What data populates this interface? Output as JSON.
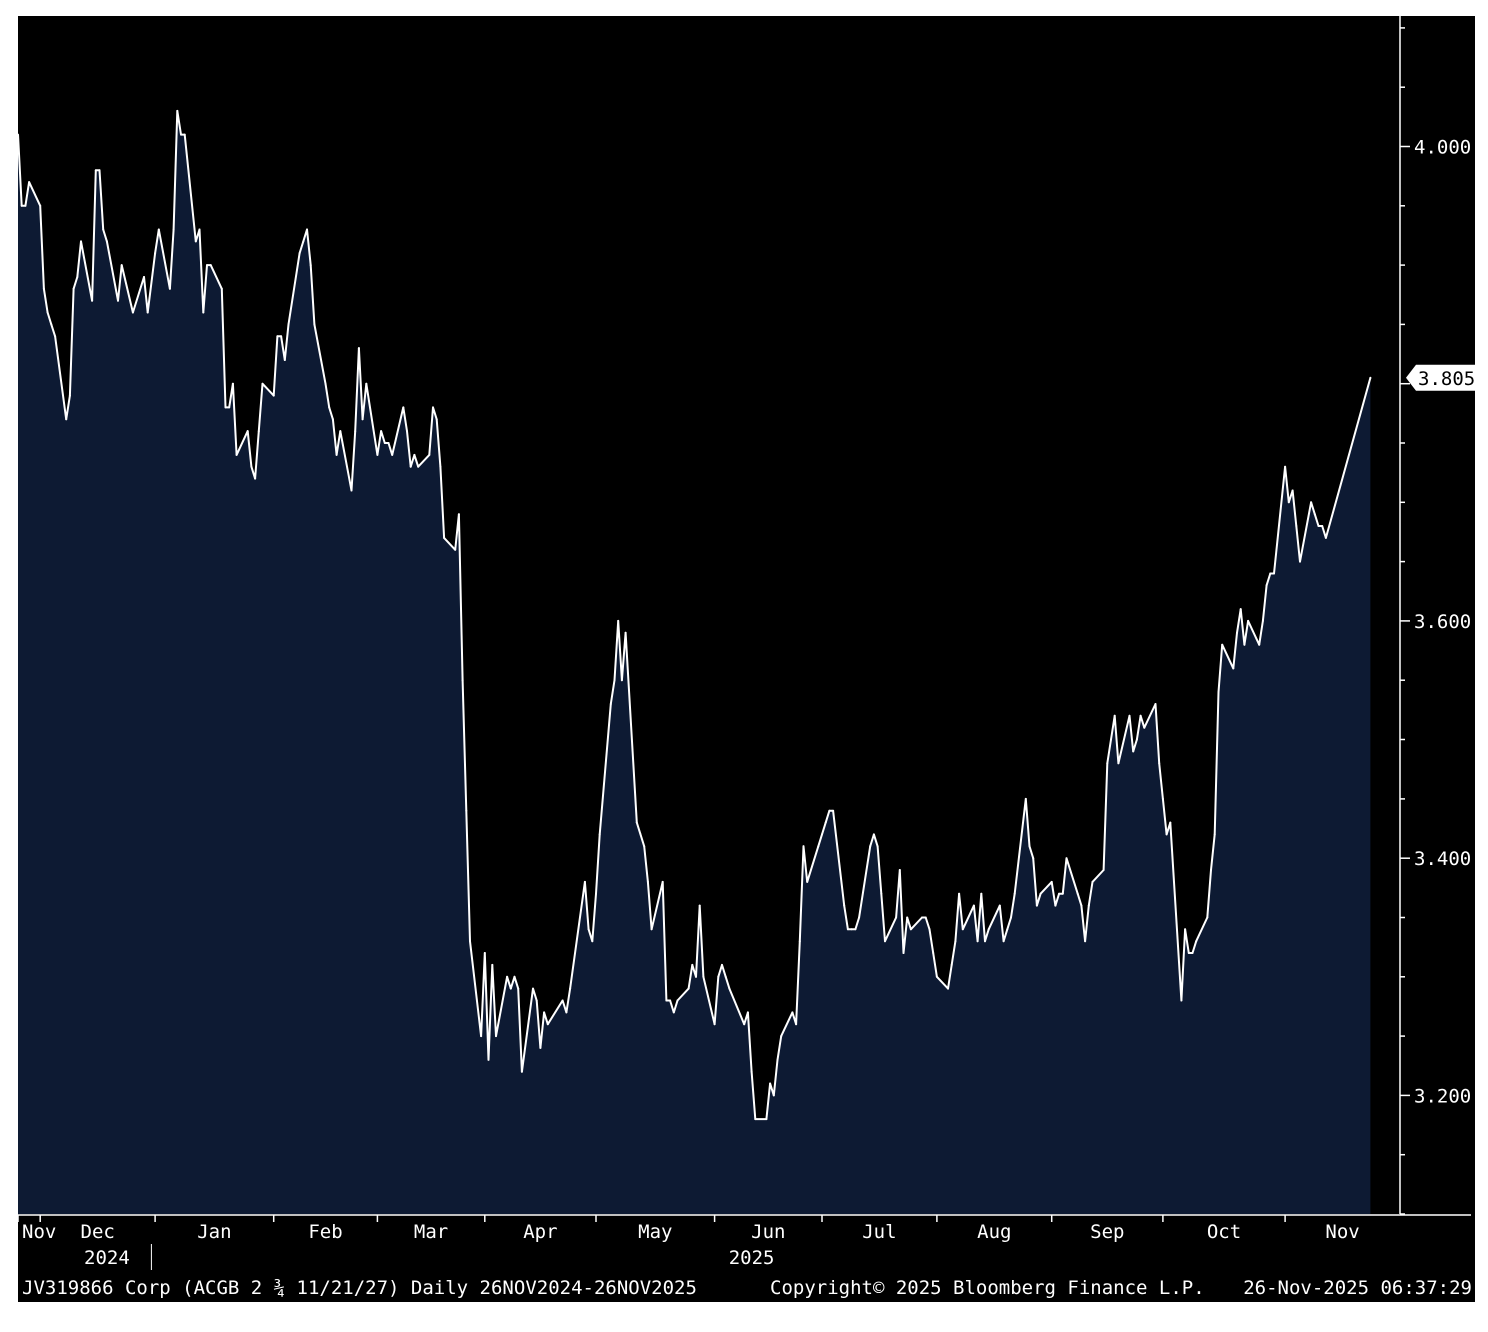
{
  "chart_data": {
    "type": "area",
    "security": "JV319866 Corp (ACGB 2 ¾ 11/21/27) Daily 26NOV2024-26NOV2025",
    "ylim": [
      3.1,
      4.11
    ],
    "grid": false,
    "colors": {
      "line": "#ffffff",
      "fill": "#0d1a33",
      "background": "#000000"
    },
    "y_ticks": [
      "3.200",
      "3.400",
      "3.600",
      "4.000"
    ],
    "y_tick_values": [
      3.2,
      3.4,
      3.6,
      4.0
    ],
    "last_value_label": "3.805",
    "last_value": 3.805,
    "x_ticks": [
      {
        "label": "Nov",
        "date": "2024-11-26"
      },
      {
        "label": "Dec",
        "date": "2024-12-02"
      },
      {
        "label": "Jan",
        "date": "2025-01-02"
      },
      {
        "label": "Feb",
        "date": "2025-02-03"
      },
      {
        "label": "Mar",
        "date": "2025-03-03"
      },
      {
        "label": "Apr",
        "date": "2025-04-01"
      },
      {
        "label": "May",
        "date": "2025-05-01"
      },
      {
        "label": "Jun",
        "date": "2025-06-02"
      },
      {
        "label": "Jul",
        "date": "2025-07-01"
      },
      {
        "label": "Aug",
        "date": "2025-08-01"
      },
      {
        "label": "Sep",
        "date": "2025-09-01"
      },
      {
        "label": "Oct",
        "date": "2025-10-01"
      },
      {
        "label": "Nov",
        "date": "2025-11-03"
      }
    ],
    "year_labels": [
      {
        "label": "2024",
        "date": "2024-12-20"
      },
      {
        "label": "2025",
        "date": "2025-06-12"
      }
    ],
    "x_start": "2024-11-26",
    "x_end": "2025-12-04",
    "points": [
      [
        "2024-11-26",
        4.01
      ],
      [
        "2024-11-27",
        3.95
      ],
      [
        "2024-11-28",
        3.95
      ],
      [
        "2024-11-29",
        3.97
      ],
      [
        "2024-12-02",
        3.95
      ],
      [
        "2024-12-03",
        3.88
      ],
      [
        "2024-12-04",
        3.86
      ],
      [
        "2024-12-05",
        3.85
      ],
      [
        "2024-12-06",
        3.84
      ],
      [
        "2024-12-09",
        3.77
      ],
      [
        "2024-12-10",
        3.79
      ],
      [
        "2024-12-11",
        3.88
      ],
      [
        "2024-12-12",
        3.89
      ],
      [
        "2024-12-13",
        3.92
      ],
      [
        "2024-12-16",
        3.87
      ],
      [
        "2024-12-17",
        3.98
      ],
      [
        "2024-12-18",
        3.98
      ],
      [
        "2024-12-19",
        3.93
      ],
      [
        "2024-12-20",
        3.92
      ],
      [
        "2024-12-23",
        3.87
      ],
      [
        "2024-12-24",
        3.9
      ],
      [
        "2024-12-27",
        3.86
      ],
      [
        "2024-12-30",
        3.89
      ],
      [
        "2024-12-31",
        3.86
      ],
      [
        "2025-01-02",
        3.91
      ],
      [
        "2025-01-03",
        3.93
      ],
      [
        "2025-01-06",
        3.88
      ],
      [
        "2025-01-07",
        3.93
      ],
      [
        "2025-01-08",
        4.03
      ],
      [
        "2025-01-09",
        4.01
      ],
      [
        "2025-01-10",
        4.01
      ],
      [
        "2025-01-13",
        3.92
      ],
      [
        "2025-01-14",
        3.93
      ],
      [
        "2025-01-15",
        3.86
      ],
      [
        "2025-01-16",
        3.9
      ],
      [
        "2025-01-17",
        3.9
      ],
      [
        "2025-01-20",
        3.88
      ],
      [
        "2025-01-21",
        3.78
      ],
      [
        "2025-01-22",
        3.78
      ],
      [
        "2025-01-23",
        3.8
      ],
      [
        "2025-01-24",
        3.74
      ],
      [
        "2025-01-27",
        3.76
      ],
      [
        "2025-01-28",
        3.73
      ],
      [
        "2025-01-29",
        3.72
      ],
      [
        "2025-01-30",
        3.76
      ],
      [
        "2025-01-31",
        3.8
      ],
      [
        "2025-02-03",
        3.79
      ],
      [
        "2025-02-04",
        3.84
      ],
      [
        "2025-02-05",
        3.84
      ],
      [
        "2025-02-06",
        3.82
      ],
      [
        "2025-02-07",
        3.85
      ],
      [
        "2025-02-10",
        3.91
      ],
      [
        "2025-02-11",
        3.92
      ],
      [
        "2025-02-12",
        3.93
      ],
      [
        "2025-02-13",
        3.9
      ],
      [
        "2025-02-14",
        3.85
      ],
      [
        "2025-02-17",
        3.8
      ],
      [
        "2025-02-18",
        3.78
      ],
      [
        "2025-02-19",
        3.77
      ],
      [
        "2025-02-20",
        3.74
      ],
      [
        "2025-02-21",
        3.76
      ],
      [
        "2025-02-24",
        3.71
      ],
      [
        "2025-02-25",
        3.76
      ],
      [
        "2025-02-26",
        3.83
      ],
      [
        "2025-02-27",
        3.77
      ],
      [
        "2025-02-28",
        3.8
      ],
      [
        "2025-03-03",
        3.74
      ],
      [
        "2025-03-04",
        3.76
      ],
      [
        "2025-03-05",
        3.75
      ],
      [
        "2025-03-06",
        3.75
      ],
      [
        "2025-03-07",
        3.74
      ],
      [
        "2025-03-10",
        3.78
      ],
      [
        "2025-03-11",
        3.76
      ],
      [
        "2025-03-12",
        3.73
      ],
      [
        "2025-03-13",
        3.74
      ],
      [
        "2025-03-14",
        3.73
      ],
      [
        "2025-03-17",
        3.74
      ],
      [
        "2025-03-18",
        3.78
      ],
      [
        "2025-03-19",
        3.77
      ],
      [
        "2025-03-20",
        3.73
      ],
      [
        "2025-03-21",
        3.67
      ],
      [
        "2025-03-24",
        3.66
      ],
      [
        "2025-03-25",
        3.69
      ],
      [
        "2025-03-26",
        3.55
      ],
      [
        "2025-03-27",
        3.44
      ],
      [
        "2025-03-28",
        3.33
      ],
      [
        "2025-03-31",
        3.25
      ],
      [
        "2025-04-01",
        3.32
      ],
      [
        "2025-04-02",
        3.23
      ],
      [
        "2025-04-03",
        3.31
      ],
      [
        "2025-04-04",
        3.25
      ],
      [
        "2025-04-07",
        3.3
      ],
      [
        "2025-04-08",
        3.29
      ],
      [
        "2025-04-09",
        3.3
      ],
      [
        "2025-04-10",
        3.29
      ],
      [
        "2025-04-11",
        3.22
      ],
      [
        "2025-04-14",
        3.29
      ],
      [
        "2025-04-15",
        3.28
      ],
      [
        "2025-04-16",
        3.24
      ],
      [
        "2025-04-17",
        3.27
      ],
      [
        "2025-04-18",
        3.26
      ],
      [
        "2025-04-22",
        3.28
      ],
      [
        "2025-04-23",
        3.27
      ],
      [
        "2025-04-24",
        3.29
      ],
      [
        "2025-04-28",
        3.38
      ],
      [
        "2025-04-29",
        3.34
      ],
      [
        "2025-04-30",
        3.33
      ],
      [
        "2025-05-01",
        3.37
      ],
      [
        "2025-05-02",
        3.42
      ],
      [
        "2025-05-05",
        3.53
      ],
      [
        "2025-05-06",
        3.55
      ],
      [
        "2025-05-07",
        3.6
      ],
      [
        "2025-05-08",
        3.55
      ],
      [
        "2025-05-09",
        3.59
      ],
      [
        "2025-05-12",
        3.43
      ],
      [
        "2025-05-13",
        3.42
      ],
      [
        "2025-05-14",
        3.41
      ],
      [
        "2025-05-15",
        3.38
      ],
      [
        "2025-05-16",
        3.34
      ],
      [
        "2025-05-19",
        3.38
      ],
      [
        "2025-05-20",
        3.28
      ],
      [
        "2025-05-21",
        3.28
      ],
      [
        "2025-05-22",
        3.27
      ],
      [
        "2025-05-23",
        3.28
      ],
      [
        "2025-05-26",
        3.29
      ],
      [
        "2025-05-27",
        3.31
      ],
      [
        "2025-05-28",
        3.3
      ],
      [
        "2025-05-29",
        3.36
      ],
      [
        "2025-05-30",
        3.3
      ],
      [
        "2025-06-02",
        3.26
      ],
      [
        "2025-06-03",
        3.3
      ],
      [
        "2025-06-04",
        3.31
      ],
      [
        "2025-06-05",
        3.3
      ],
      [
        "2025-06-06",
        3.29
      ],
      [
        "2025-06-10",
        3.26
      ],
      [
        "2025-06-11",
        3.27
      ],
      [
        "2025-06-12",
        3.22
      ],
      [
        "2025-06-13",
        3.18
      ],
      [
        "2025-06-16",
        3.18
      ],
      [
        "2025-06-17",
        3.21
      ],
      [
        "2025-06-18",
        3.2
      ],
      [
        "2025-06-19",
        3.23
      ],
      [
        "2025-06-20",
        3.25
      ],
      [
        "2025-06-23",
        3.27
      ],
      [
        "2025-06-24",
        3.26
      ],
      [
        "2025-06-25",
        3.33
      ],
      [
        "2025-06-26",
        3.41
      ],
      [
        "2025-06-27",
        3.38
      ],
      [
        "2025-06-30",
        3.41
      ],
      [
        "2025-07-01",
        3.42
      ],
      [
        "2025-07-02",
        3.43
      ],
      [
        "2025-07-03",
        3.44
      ],
      [
        "2025-07-04",
        3.44
      ],
      [
        "2025-07-07",
        3.36
      ],
      [
        "2025-07-08",
        3.34
      ],
      [
        "2025-07-09",
        3.34
      ],
      [
        "2025-07-10",
        3.34
      ],
      [
        "2025-07-11",
        3.35
      ],
      [
        "2025-07-14",
        3.41
      ],
      [
        "2025-07-15",
        3.42
      ],
      [
        "2025-07-16",
        3.41
      ],
      [
        "2025-07-17",
        3.37
      ],
      [
        "2025-07-18",
        3.33
      ],
      [
        "2025-07-21",
        3.35
      ],
      [
        "2025-07-22",
        3.39
      ],
      [
        "2025-07-23",
        3.32
      ],
      [
        "2025-07-24",
        3.35
      ],
      [
        "2025-07-25",
        3.34
      ],
      [
        "2025-07-28",
        3.35
      ],
      [
        "2025-07-29",
        3.35
      ],
      [
        "2025-07-30",
        3.34
      ],
      [
        "2025-07-31",
        3.32
      ],
      [
        "2025-08-01",
        3.3
      ],
      [
        "2025-08-04",
        3.29
      ],
      [
        "2025-08-05",
        3.31
      ],
      [
        "2025-08-06",
        3.33
      ],
      [
        "2025-08-07",
        3.37
      ],
      [
        "2025-08-08",
        3.34
      ],
      [
        "2025-08-11",
        3.36
      ],
      [
        "2025-08-12",
        3.33
      ],
      [
        "2025-08-13",
        3.37
      ],
      [
        "2025-08-14",
        3.33
      ],
      [
        "2025-08-15",
        3.34
      ],
      [
        "2025-08-18",
        3.36
      ],
      [
        "2025-08-19",
        3.33
      ],
      [
        "2025-08-20",
        3.34
      ],
      [
        "2025-08-21",
        3.35
      ],
      [
        "2025-08-22",
        3.37
      ],
      [
        "2025-08-25",
        3.45
      ],
      [
        "2025-08-26",
        3.41
      ],
      [
        "2025-08-27",
        3.4
      ],
      [
        "2025-08-28",
        3.36
      ],
      [
        "2025-08-29",
        3.37
      ],
      [
        "2025-09-01",
        3.38
      ],
      [
        "2025-09-02",
        3.36
      ],
      [
        "2025-09-03",
        3.37
      ],
      [
        "2025-09-04",
        3.37
      ],
      [
        "2025-09-05",
        3.4
      ],
      [
        "2025-09-08",
        3.37
      ],
      [
        "2025-09-09",
        3.36
      ],
      [
        "2025-09-10",
        3.33
      ],
      [
        "2025-09-11",
        3.36
      ],
      [
        "2025-09-12",
        3.38
      ],
      [
        "2025-09-15",
        3.39
      ],
      [
        "2025-09-16",
        3.48
      ],
      [
        "2025-09-17",
        3.5
      ],
      [
        "2025-09-18",
        3.52
      ],
      [
        "2025-09-19",
        3.48
      ],
      [
        "2025-09-22",
        3.52
      ],
      [
        "2025-09-23",
        3.49
      ],
      [
        "2025-09-24",
        3.5
      ],
      [
        "2025-09-25",
        3.52
      ],
      [
        "2025-09-26",
        3.51
      ],
      [
        "2025-09-29",
        3.53
      ],
      [
        "2025-09-30",
        3.48
      ],
      [
        "2025-10-01",
        3.45
      ],
      [
        "2025-10-02",
        3.42
      ],
      [
        "2025-10-03",
        3.43
      ],
      [
        "2025-10-06",
        3.28
      ],
      [
        "2025-10-07",
        3.34
      ],
      [
        "2025-10-08",
        3.32
      ],
      [
        "2025-10-09",
        3.32
      ],
      [
        "2025-10-10",
        3.33
      ],
      [
        "2025-10-13",
        3.35
      ],
      [
        "2025-10-14",
        3.39
      ],
      [
        "2025-10-15",
        3.42
      ],
      [
        "2025-10-16",
        3.54
      ],
      [
        "2025-10-17",
        3.58
      ],
      [
        "2025-10-20",
        3.56
      ],
      [
        "2025-10-21",
        3.59
      ],
      [
        "2025-10-22",
        3.61
      ],
      [
        "2025-10-23",
        3.58
      ],
      [
        "2025-10-24",
        3.6
      ],
      [
        "2025-10-27",
        3.58
      ],
      [
        "2025-10-28",
        3.6
      ],
      [
        "2025-10-29",
        3.63
      ],
      [
        "2025-10-30",
        3.64
      ],
      [
        "2025-10-31",
        3.64
      ],
      [
        "2025-11-03",
        3.73
      ],
      [
        "2025-11-04",
        3.7
      ],
      [
        "2025-11-05",
        3.71
      ],
      [
        "2025-11-06",
        3.68
      ],
      [
        "2025-11-07",
        3.65
      ],
      [
        "2025-11-10",
        3.7
      ],
      [
        "2025-11-11",
        3.69
      ],
      [
        "2025-11-12",
        3.68
      ],
      [
        "2025-11-13",
        3.68
      ],
      [
        "2025-11-14",
        3.67
      ],
      [
        "2025-11-26",
        3.805
      ]
    ]
  },
  "footer": {
    "left": "JV319866 Corp (ACGB 2 ¾ 11/21/27) Daily 26NOV2024-26NOV2025",
    "center": "Copyright© 2025 Bloomberg Finance L.P.",
    "right": "26-Nov-2025 06:37:29"
  }
}
